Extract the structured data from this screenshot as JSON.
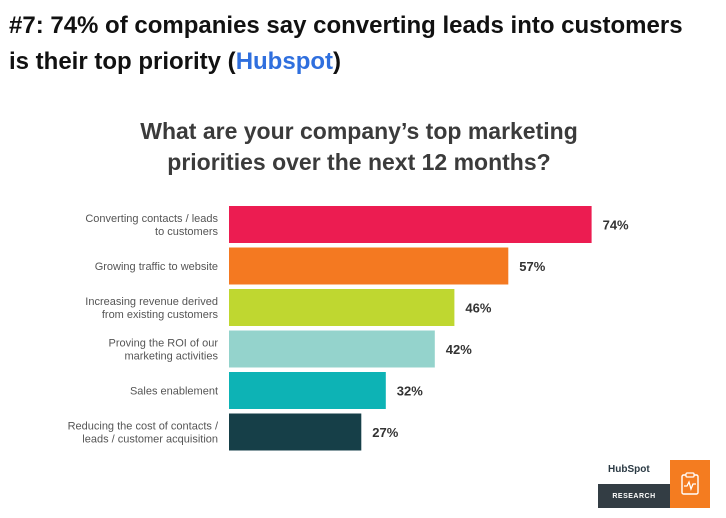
{
  "headline": {
    "prefix": "#7: 74% of companies say converting leads into customers is their top priority (",
    "link_text": "Hubspot",
    "suffix": ")"
  },
  "colors": {
    "link": "#2f6fde",
    "bars": [
      "#ec1c51",
      "#f47921",
      "#bfd730",
      "#94d3cc",
      "#0db3b5",
      "#163f48"
    ],
    "badge_orange": "#f47c20",
    "badge_dark": "#333d44"
  },
  "chart_data": {
    "type": "bar",
    "orientation": "horizontal",
    "title": "What are your company’s top marketing priorities over the next 12 months?",
    "categories": [
      [
        "Converting contacts / leads",
        "to customers"
      ],
      [
        "Growing traffic to website"
      ],
      [
        "Increasing revenue derived",
        "from existing customers"
      ],
      [
        "Proving the ROI of our",
        "marketing activities"
      ],
      [
        "Sales enablement"
      ],
      [
        "Reducing the cost of contacts /",
        "leads / customer acquisition"
      ]
    ],
    "values": [
      74,
      57,
      46,
      42,
      32,
      27
    ],
    "value_labels": [
      "74%",
      "57%",
      "46%",
      "42%",
      "32%",
      "27%"
    ],
    "value_unit": "%",
    "grid": false,
    "legend": "none"
  },
  "badge": {
    "logo": "HubSpot",
    "label": "RESEARCH",
    "icon": "clipboard-pulse-icon"
  }
}
